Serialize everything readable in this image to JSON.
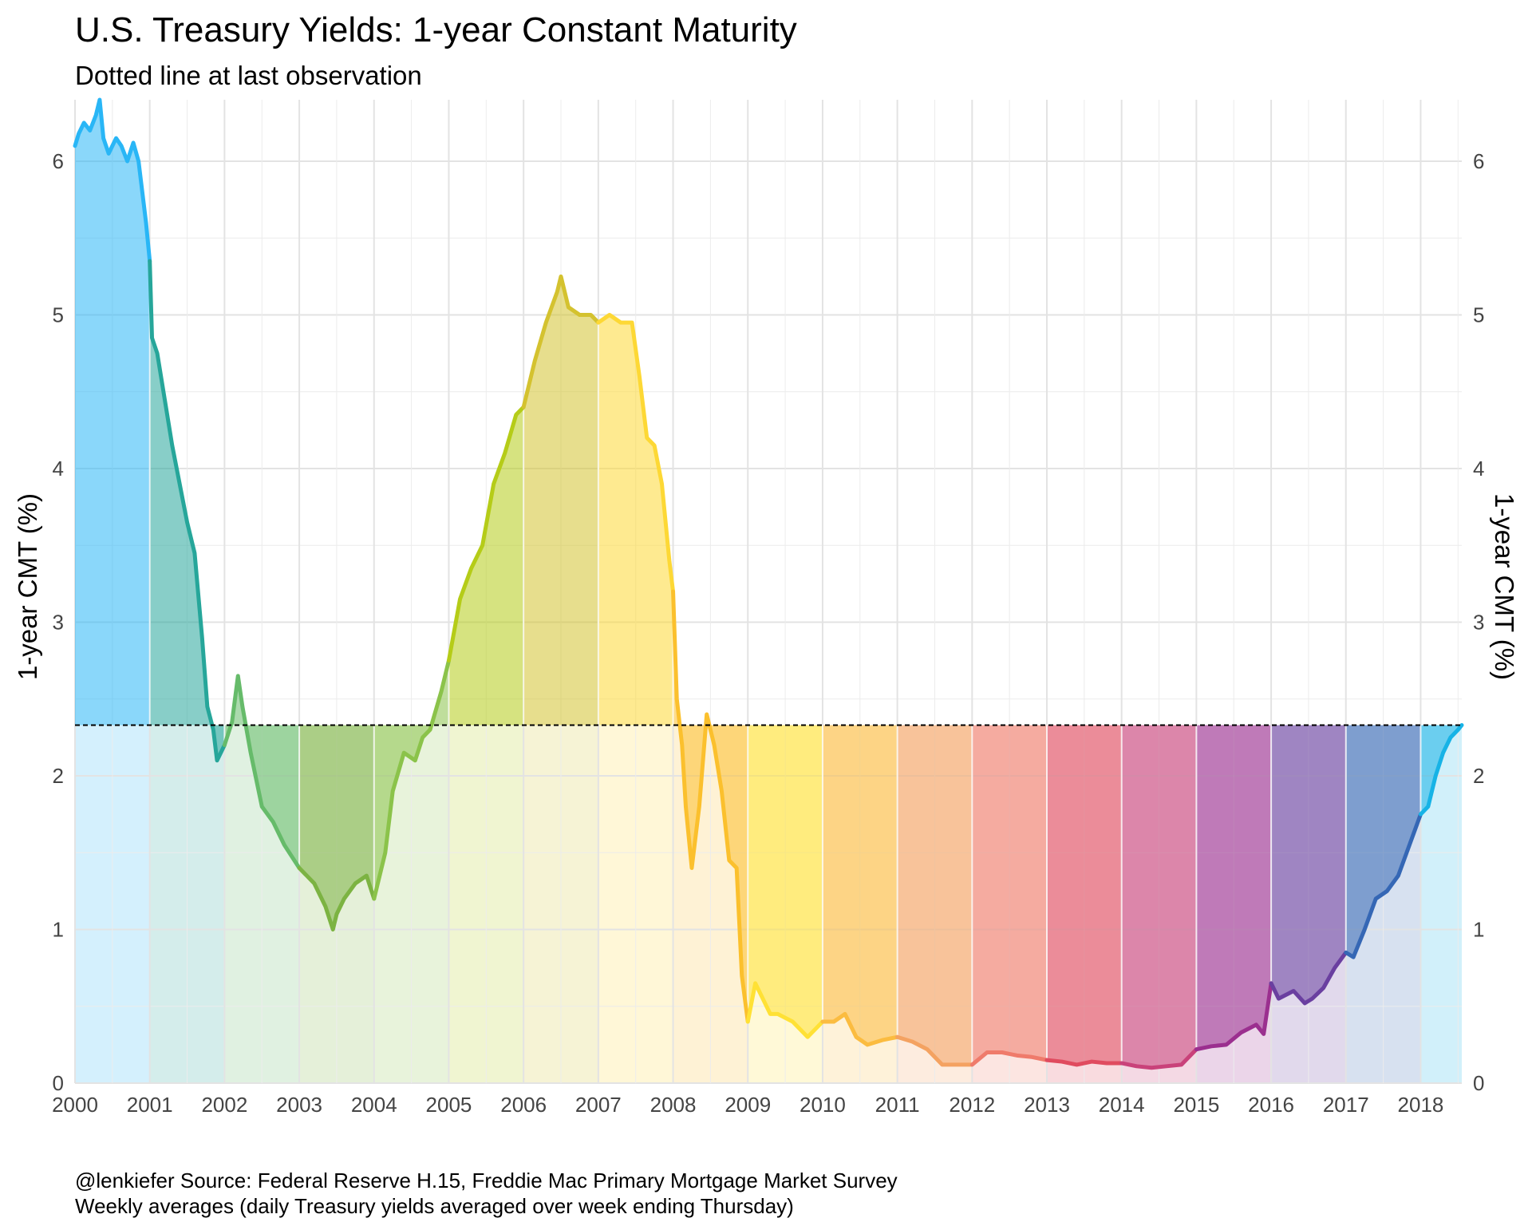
{
  "chart_data": {
    "type": "area",
    "title": "U.S. Treasury Yields: 1-year Constant Maturity",
    "subtitle": "Dotted line at last observation",
    "ylabel": "1-year CMT (%)",
    "ylabel_right": "1-year CMT (%)",
    "caption_line1": "@lenkiefer Source: Federal Reserve H.15, Freddie Mac Primary Mortgage Market Survey",
    "caption_line2": "Weekly averages (daily Treasury yields averaged over week ending Thursday)",
    "xlim": [
      2000,
      2018.55
    ],
    "ylim": [
      0,
      6.4
    ],
    "x_ticks": [
      2000,
      2001,
      2002,
      2003,
      2004,
      2005,
      2006,
      2007,
      2008,
      2009,
      2010,
      2011,
      2012,
      2013,
      2014,
      2015,
      2016,
      2017,
      2018
    ],
    "x_tick_labels": [
      "2000",
      "2001",
      "2002",
      "2003",
      "2004",
      "2005",
      "2006",
      "2007",
      "2008",
      "2009",
      "2010",
      "2011",
      "2012",
      "2013",
      "2014",
      "2015",
      "2016",
      "2017",
      "2018"
    ],
    "y_ticks": [
      0,
      1,
      2,
      3,
      4,
      5,
      6
    ],
    "y_tick_labels": [
      "0",
      "1",
      "2",
      "3",
      "4",
      "5",
      "6"
    ],
    "last_observation": 2.33,
    "grid": true,
    "year_colors": [
      "#29b6f6",
      "#26a69a",
      "#66bb6a",
      "#7cb342",
      "#8bc34a",
      "#b5cc18",
      "#d4c22f",
      "#fdd835",
      "#fbc02d",
      "#ffe135",
      "#fbbc40",
      "#f4a261",
      "#ef7b6b",
      "#e04b5f",
      "#c9427a",
      "#9b2f8f",
      "#6a3fa0",
      "#3567b5",
      "#17b3e6"
    ],
    "series": [
      {
        "x": [
          2000.0,
          2000.05,
          2000.12,
          2000.2,
          2000.28,
          2000.33,
          2000.38,
          2000.45,
          2000.55,
          2000.62,
          2000.7,
          2000.78,
          2000.85,
          2000.9,
          2000.95,
          2001.0,
          2001.03,
          2001.1,
          2001.2,
          2001.3,
          2001.4,
          2001.5,
          2001.6,
          2001.7,
          2001.77,
          2001.85,
          2001.9,
          2002.0,
          2002.1,
          2002.18,
          2002.24,
          2002.35,
          2002.5,
          2002.65,
          2002.8,
          2003.0,
          2003.2,
          2003.35,
          2003.45,
          2003.5,
          2003.6,
          2003.75,
          2003.9,
          2004.0,
          2004.15,
          2004.25,
          2004.4,
          2004.55,
          2004.65,
          2004.75,
          2004.9,
          2005.0,
          2005.15,
          2005.3,
          2005.45,
          2005.6,
          2005.75,
          2005.9,
          2006.0,
          2006.15,
          2006.3,
          2006.45,
          2006.5,
          2006.6,
          2006.75,
          2006.9,
          2007.0,
          2007.15,
          2007.3,
          2007.45,
          2007.55,
          2007.65,
          2007.75,
          2007.85,
          2007.95,
          2008.0,
          2008.05,
          2008.12,
          2008.17,
          2008.25,
          2008.35,
          2008.45,
          2008.55,
          2008.65,
          2008.75,
          2008.85,
          2008.92,
          2009.0,
          2009.1,
          2009.2,
          2009.3,
          2009.4,
          2009.6,
          2009.8,
          2010.0,
          2010.15,
          2010.3,
          2010.45,
          2010.6,
          2010.8,
          2011.0,
          2011.2,
          2011.4,
          2011.6,
          2011.8,
          2012.0,
          2012.2,
          2012.4,
          2012.6,
          2012.8,
          2013.0,
          2013.2,
          2013.4,
          2013.6,
          2013.8,
          2014.0,
          2014.2,
          2014.4,
          2014.6,
          2014.8,
          2015.0,
          2015.2,
          2015.4,
          2015.6,
          2015.8,
          2015.9,
          2016.0,
          2016.1,
          2016.3,
          2016.45,
          2016.55,
          2016.7,
          2016.85,
          2017.0,
          2017.1,
          2017.25,
          2017.4,
          2017.55,
          2017.7,
          2017.85,
          2018.0,
          2018.1,
          2018.2,
          2018.3,
          2018.4,
          2018.5,
          2018.55
        ],
        "y": [
          6.1,
          6.18,
          6.25,
          6.2,
          6.3,
          6.4,
          6.15,
          6.05,
          6.15,
          6.1,
          6.0,
          6.12,
          6.0,
          5.8,
          5.6,
          5.35,
          4.85,
          4.75,
          4.45,
          4.15,
          3.9,
          3.65,
          3.45,
          2.9,
          2.45,
          2.3,
          2.1,
          2.2,
          2.35,
          2.65,
          2.45,
          2.15,
          1.8,
          1.7,
          1.55,
          1.4,
          1.3,
          1.15,
          1.0,
          1.1,
          1.2,
          1.3,
          1.35,
          1.2,
          1.5,
          1.9,
          2.15,
          2.1,
          2.25,
          2.3,
          2.55,
          2.75,
          3.15,
          3.35,
          3.5,
          3.9,
          4.1,
          4.35,
          4.4,
          4.7,
          4.95,
          5.15,
          5.25,
          5.05,
          5.0,
          5.0,
          4.95,
          5.0,
          4.95,
          4.95,
          4.6,
          4.2,
          4.15,
          3.9,
          3.4,
          3.2,
          2.5,
          2.2,
          1.8,
          1.4,
          1.8,
          2.4,
          2.2,
          1.9,
          1.45,
          1.4,
          0.7,
          0.4,
          0.65,
          0.55,
          0.45,
          0.45,
          0.4,
          0.3,
          0.4,
          0.4,
          0.45,
          0.3,
          0.25,
          0.28,
          0.3,
          0.27,
          0.22,
          0.12,
          0.12,
          0.12,
          0.2,
          0.2,
          0.18,
          0.17,
          0.15,
          0.14,
          0.12,
          0.14,
          0.13,
          0.13,
          0.11,
          0.1,
          0.11,
          0.12,
          0.22,
          0.24,
          0.25,
          0.33,
          0.38,
          0.32,
          0.65,
          0.55,
          0.6,
          0.52,
          0.55,
          0.62,
          0.75,
          0.85,
          0.82,
          1.0,
          1.2,
          1.25,
          1.35,
          1.55,
          1.75,
          1.8,
          2.0,
          2.15,
          2.25,
          2.3,
          2.33
        ]
      }
    ]
  }
}
